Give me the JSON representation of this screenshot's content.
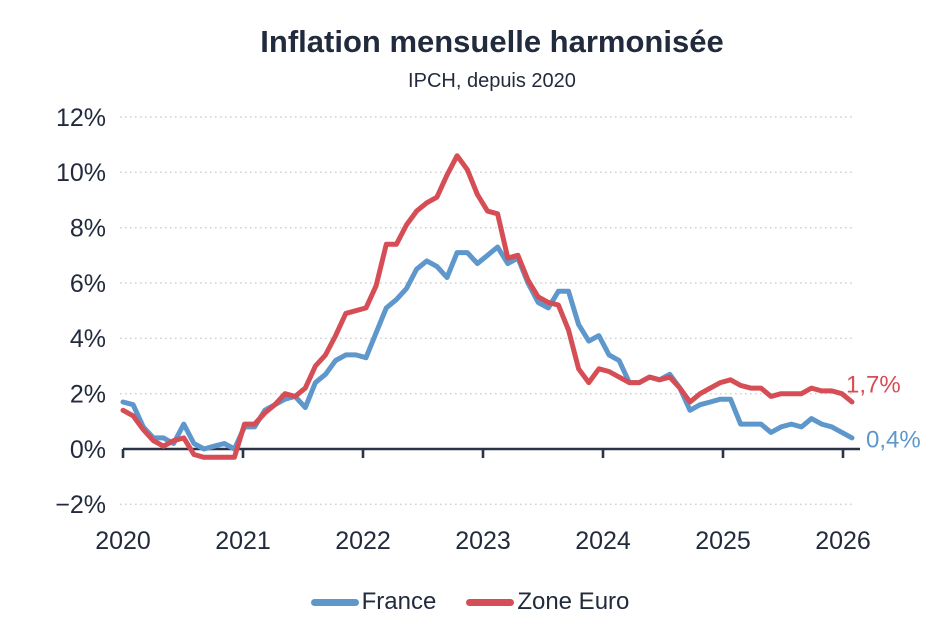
{
  "chart_data": {
    "type": "line",
    "title": "Inflation mensuelle harmonisée",
    "subtitle": "IPCH, depuis 2020",
    "xlabel": "",
    "ylabel": "",
    "x_tick_labels": [
      "2020",
      "2021",
      "2022",
      "2023",
      "2024",
      "2025",
      "2026"
    ],
    "y_ticks": [
      12,
      10,
      8,
      6,
      4,
      2,
      0,
      -2
    ],
    "y_tick_labels": [
      "12%",
      "10%",
      "8%",
      "6%",
      "4%",
      "2%",
      "0%",
      "−2%"
    ],
    "ylim": [
      -2,
      12
    ],
    "x_start": "2020-01",
    "x_end": "2026-01",
    "x_unit": "month",
    "grid": "horizontal-dotted",
    "legend_position": "bottom-center",
    "colors": {
      "text": "#222b3d",
      "axis": "#2b3447",
      "grid": "#d0d0d0",
      "france": "#5d97cb",
      "zone_euro": "#d64e55"
    },
    "series": [
      {
        "name": "France",
        "color": "#5d97cb",
        "end_label": "0,4%",
        "values": [
          1.7,
          1.6,
          0.8,
          0.4,
          0.4,
          0.2,
          0.9,
          0.2,
          0.0,
          0.1,
          0.2,
          0.0,
          0.8,
          0.8,
          1.4,
          1.6,
          1.8,
          1.9,
          1.5,
          2.4,
          2.7,
          3.2,
          3.4,
          3.4,
          3.3,
          4.2,
          5.1,
          5.4,
          5.8,
          6.5,
          6.8,
          6.6,
          6.2,
          7.1,
          7.1,
          6.7,
          7.0,
          7.3,
          6.7,
          6.9,
          6.0,
          5.3,
          5.1,
          5.7,
          5.7,
          4.5,
          3.9,
          4.1,
          3.4,
          3.2,
          2.4,
          2.4,
          2.6,
          2.5,
          2.7,
          2.2,
          1.4,
          1.6,
          1.7,
          1.8,
          1.8,
          0.9,
          0.9,
          0.9,
          0.6,
          0.8,
          0.9,
          0.8,
          1.1,
          0.9,
          0.8,
          0.6,
          0.4
        ]
      },
      {
        "name": "Zone Euro",
        "color": "#d64e55",
        "end_label": "1,7%",
        "values": [
          1.4,
          1.2,
          0.7,
          0.3,
          0.1,
          0.3,
          0.4,
          -0.2,
          -0.3,
          -0.3,
          -0.3,
          -0.3,
          0.9,
          0.9,
          1.3,
          1.6,
          2.0,
          1.9,
          2.2,
          3.0,
          3.4,
          4.1,
          4.9,
          5.0,
          5.1,
          5.9,
          7.4,
          7.4,
          8.1,
          8.6,
          8.9,
          9.1,
          9.9,
          10.6,
          10.1,
          9.2,
          8.6,
          8.5,
          6.9,
          7.0,
          6.1,
          5.5,
          5.3,
          5.2,
          4.3,
          2.9,
          2.4,
          2.9,
          2.8,
          2.6,
          2.4,
          2.4,
          2.6,
          2.5,
          2.6,
          2.2,
          1.7,
          2.0,
          2.2,
          2.4,
          2.5,
          2.3,
          2.2,
          2.2,
          1.9,
          2.0,
          2.0,
          2.0,
          2.2,
          2.1,
          2.1,
          2.0,
          1.7
        ]
      }
    ]
  }
}
